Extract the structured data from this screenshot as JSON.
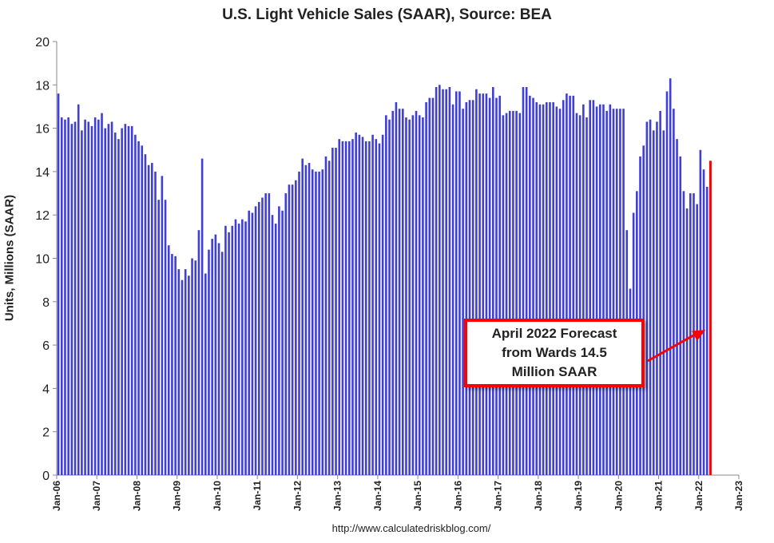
{
  "chart_data": {
    "type": "bar",
    "title": "U.S. Light Vehicle Sales (SAAR), Source: BEA",
    "ylabel": "Units, Millions (SAAR)",
    "xlabel": "",
    "ylim": [
      0,
      20
    ],
    "yticks": [
      0,
      2,
      4,
      6,
      8,
      10,
      12,
      14,
      16,
      18,
      20
    ],
    "xlim": [
      "2006-01",
      "2023-01"
    ],
    "xtick_labels": [
      "Jan-06",
      "Jan-07",
      "Jan-08",
      "Jan-09",
      "Jan-10",
      "Jan-11",
      "Jan-12",
      "Jan-13",
      "Jan-14",
      "Jan-15",
      "Jan-16",
      "Jan-17",
      "Jan-18",
      "Jan-19",
      "Jan-20",
      "Jan-21",
      "Jan-22",
      "Jan-23"
    ],
    "start_month": "2006-01",
    "values": [
      17.6,
      16.5,
      16.4,
      16.5,
      16.2,
      16.3,
      17.1,
      15.9,
      16.4,
      16.3,
      16.1,
      16.5,
      16.4,
      16.7,
      16.0,
      16.2,
      16.3,
      15.8,
      15.5,
      16.0,
      16.2,
      16.1,
      16.1,
      15.7,
      15.4,
      15.2,
      14.8,
      14.3,
      14.4,
      14.0,
      12.7,
      13.8,
      12.7,
      10.6,
      10.2,
      10.1,
      9.5,
      9.0,
      9.5,
      9.2,
      10.0,
      9.9,
      11.3,
      14.6,
      9.3,
      10.4,
      10.9,
      11.1,
      10.7,
      10.3,
      11.5,
      11.2,
      11.5,
      11.8,
      11.6,
      11.8,
      11.7,
      12.2,
      12.1,
      12.4,
      12.6,
      12.8,
      13.0,
      13.0,
      12.0,
      11.6,
      12.4,
      12.2,
      13.0,
      13.4,
      13.4,
      13.6,
      14.0,
      14.6,
      14.3,
      14.4,
      14.1,
      14.0,
      14.0,
      14.1,
      14.7,
      14.5,
      15.1,
      15.1,
      15.5,
      15.4,
      15.4,
      15.4,
      15.5,
      15.8,
      15.7,
      15.6,
      15.4,
      15.4,
      15.7,
      15.5,
      15.3,
      15.7,
      16.6,
      16.4,
      16.8,
      17.2,
      16.9,
      16.9,
      16.5,
      16.4,
      16.6,
      16.8,
      16.6,
      16.5,
      17.2,
      17.4,
      17.4,
      17.9,
      18.0,
      17.8,
      17.8,
      17.9,
      17.1,
      17.7,
      17.7,
      16.9,
      17.2,
      17.3,
      17.3,
      17.8,
      17.6,
      17.6,
      17.6,
      17.4,
      17.9,
      17.4,
      17.5,
      16.6,
      16.7,
      16.8,
      16.8,
      16.8,
      16.7,
      17.9,
      17.9,
      17.5,
      17.4,
      17.2,
      17.1,
      17.1,
      17.2,
      17.2,
      17.2,
      17.0,
      16.9,
      17.3,
      17.6,
      17.5,
      17.5,
      16.7,
      16.6,
      17.1,
      16.5,
      17.3,
      17.3,
      17.0,
      17.1,
      17.1,
      16.8,
      17.1,
      16.9,
      16.9,
      16.9,
      16.9,
      11.3,
      8.6,
      12.1,
      13.1,
      14.7,
      15.2,
      16.3,
      16.4,
      15.9,
      16.3,
      16.8,
      15.9,
      17.7,
      18.3,
      16.9,
      15.5,
      14.7,
      13.1,
      12.3,
      13.0,
      13.0,
      12.5,
      15.0,
      14.1,
      13.3
    ],
    "bar_color": "#3f3fd8",
    "forecast": {
      "month": "2022-04",
      "value": 14.5,
      "color": "#ff0000"
    },
    "annotation": {
      "text": "April 2022 Forecast\nfrom Wards 14.5\n Million SAAR",
      "color": "#ff0000"
    },
    "grid": false,
    "legend": "none"
  },
  "source_url": "http://www.calculatedriskblog.com/"
}
